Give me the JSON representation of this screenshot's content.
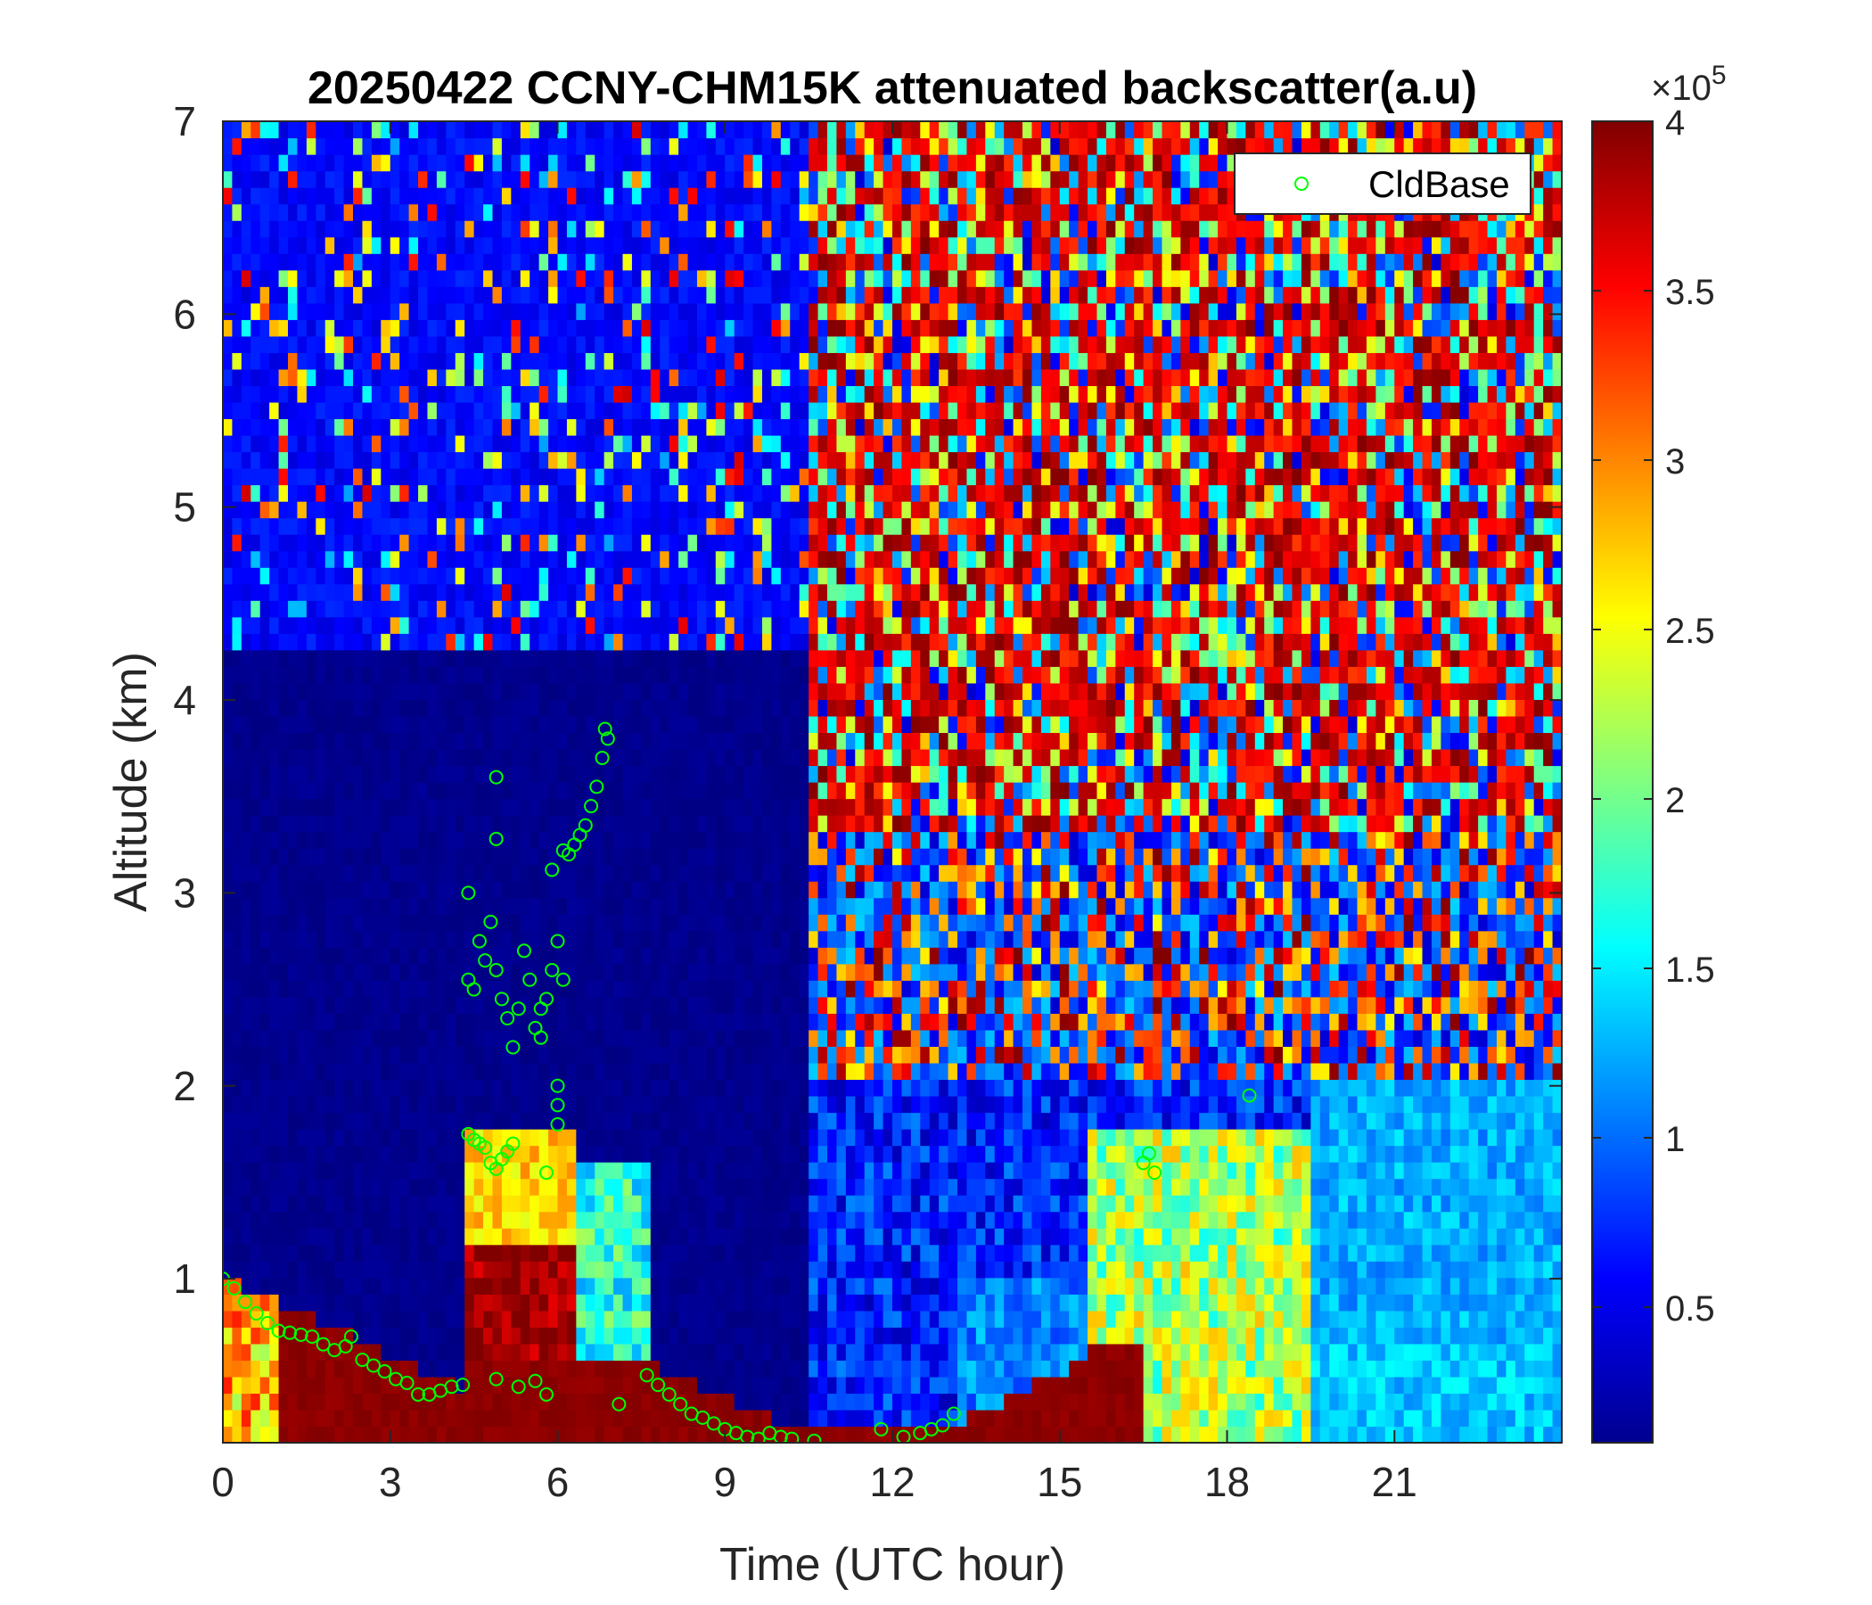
{
  "chart_data": {
    "type": "heatmap",
    "title": "20250422 CCNY-CHM15K attenuated backscatter(a.u)",
    "xlabel": "Time (UTC hour)",
    "ylabel": "Altitude (km)",
    "xlim": [
      0,
      24
    ],
    "ylim": [
      0.15,
      7
    ],
    "xticks": [
      "0",
      "3",
      "6",
      "9",
      "12",
      "15",
      "18",
      "21"
    ],
    "yticks": [
      "1",
      "2",
      "3",
      "4",
      "5",
      "6",
      "7"
    ],
    "colorbar": {
      "colormap": "jet",
      "range": [
        0.1,
        4
      ],
      "ticks": [
        "0.5",
        "1",
        "1.5",
        "2",
        "2.5",
        "3",
        "3.5",
        "4"
      ],
      "exponent_label": "×10",
      "exponent": "5"
    },
    "legend": {
      "position": "top-right",
      "entries": [
        {
          "label": "CldBase",
          "marker": "circle",
          "color": "#00ff00"
        }
      ]
    },
    "series": [
      {
        "name": "CldBase",
        "type": "scatter",
        "points": [
          [
            0.0,
            1.0
          ],
          [
            0.2,
            0.95
          ],
          [
            0.4,
            0.88
          ],
          [
            0.6,
            0.82
          ],
          [
            0.8,
            0.77
          ],
          [
            1.0,
            0.73
          ],
          [
            1.2,
            0.72
          ],
          [
            1.4,
            0.71
          ],
          [
            1.6,
            0.7
          ],
          [
            1.8,
            0.66
          ],
          [
            2.0,
            0.63
          ],
          [
            2.2,
            0.65
          ],
          [
            2.3,
            0.7
          ],
          [
            2.5,
            0.58
          ],
          [
            2.7,
            0.55
          ],
          [
            2.9,
            0.52
          ],
          [
            3.1,
            0.48
          ],
          [
            3.3,
            0.46
          ],
          [
            3.5,
            0.4
          ],
          [
            3.7,
            0.4
          ],
          [
            3.9,
            0.42
          ],
          [
            4.1,
            0.44
          ],
          [
            4.3,
            0.45
          ],
          [
            4.4,
            1.75
          ],
          [
            4.5,
            1.72
          ],
          [
            4.6,
            1.7
          ],
          [
            4.7,
            1.68
          ],
          [
            4.8,
            1.6
          ],
          [
            4.9,
            1.57
          ],
          [
            5.0,
            1.62
          ],
          [
            5.1,
            1.66
          ],
          [
            5.2,
            1.7
          ],
          [
            4.4,
            2.55
          ],
          [
            4.5,
            2.5
          ],
          [
            4.6,
            2.75
          ],
          [
            4.7,
            2.65
          ],
          [
            4.8,
            2.85
          ],
          [
            4.9,
            2.6
          ],
          [
            5.0,
            2.45
          ],
          [
            5.1,
            2.35
          ],
          [
            5.2,
            2.2
          ],
          [
            5.3,
            2.4
          ],
          [
            5.4,
            2.7
          ],
          [
            5.5,
            2.55
          ],
          [
            5.6,
            2.3
          ],
          [
            5.7,
            2.25
          ],
          [
            5.8,
            2.45
          ],
          [
            5.9,
            2.6
          ],
          [
            6.0,
            2.75
          ],
          [
            6.1,
            2.55
          ],
          [
            4.4,
            3.0
          ],
          [
            4.9,
            3.6
          ],
          [
            4.9,
            3.28
          ],
          [
            5.7,
            2.4
          ],
          [
            5.8,
            1.55
          ],
          [
            6.0,
            2.0
          ],
          [
            6.0,
            1.8
          ],
          [
            6.0,
            1.9
          ],
          [
            5.9,
            3.12
          ],
          [
            6.1,
            3.22
          ],
          [
            6.2,
            3.2
          ],
          [
            6.3,
            3.25
          ],
          [
            6.4,
            3.3
          ],
          [
            6.5,
            3.35
          ],
          [
            6.6,
            3.45
          ],
          [
            6.7,
            3.55
          ],
          [
            6.8,
            3.7
          ],
          [
            6.85,
            3.85
          ],
          [
            6.9,
            3.8
          ],
          [
            4.9,
            0.48
          ],
          [
            5.3,
            0.44
          ],
          [
            5.6,
            0.47
          ],
          [
            5.8,
            0.4
          ],
          [
            7.1,
            0.35
          ],
          [
            7.6,
            0.5
          ],
          [
            7.8,
            0.45
          ],
          [
            8.0,
            0.4
          ],
          [
            8.2,
            0.35
          ],
          [
            8.4,
            0.3
          ],
          [
            8.6,
            0.28
          ],
          [
            8.8,
            0.25
          ],
          [
            9.0,
            0.22
          ],
          [
            9.2,
            0.2
          ],
          [
            9.4,
            0.18
          ],
          [
            9.6,
            0.17
          ],
          [
            9.8,
            0.2
          ],
          [
            10.0,
            0.18
          ],
          [
            10.2,
            0.17
          ],
          [
            10.6,
            0.16
          ],
          [
            11.8,
            0.22
          ],
          [
            12.2,
            0.18
          ],
          [
            12.5,
            0.2
          ],
          [
            12.7,
            0.22
          ],
          [
            12.9,
            0.24
          ],
          [
            13.1,
            0.3
          ],
          [
            16.5,
            1.6
          ],
          [
            16.6,
            1.65
          ],
          [
            16.7,
            1.55
          ],
          [
            18.4,
            1.95
          ]
        ]
      }
    ]
  }
}
